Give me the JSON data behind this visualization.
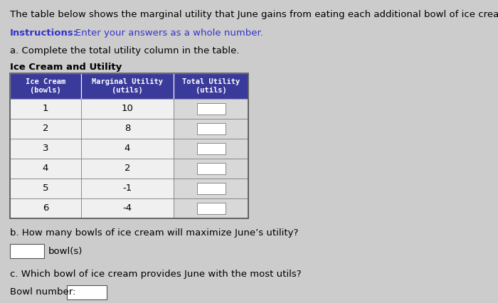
{
  "title_text": "The table below shows the marginal utility that June gains from eating each additional bowl of ice cream.",
  "instructions_label": "Instructions:",
  "instructions_text": "Enter your answers as a whole number.",
  "part_a": "a. Complete the total utility column in the table.",
  "table_title": "Ice Cream and Utility",
  "col_headers": [
    "Ice Cream\n(bowls)",
    "Marginal Utility\n(utils)",
    "Total Utility\n(utils)"
  ],
  "ice_cream": [
    "1",
    "2",
    "3",
    "4",
    "5",
    "6"
  ],
  "marginal_utility": [
    "10",
    "8",
    "4",
    "2",
    "-1",
    "-4"
  ],
  "header_bg": "#3a3a9a",
  "header_fg": "#ffffff",
  "border_color": "#777777",
  "part_b": "b. How many bowls of ice cream will maximize June’s utility?",
  "part_b_label": "bowl(s)",
  "part_c": "c. Which bowl of ice cream provides June with the most utils?",
  "part_c_label": "Bowl number:",
  "bg_color": "#cccccc",
  "content_bg": "#e8e8e8",
  "text_color": "#000000",
  "instructions_color": "#3333cc",
  "font_size": 9.5
}
